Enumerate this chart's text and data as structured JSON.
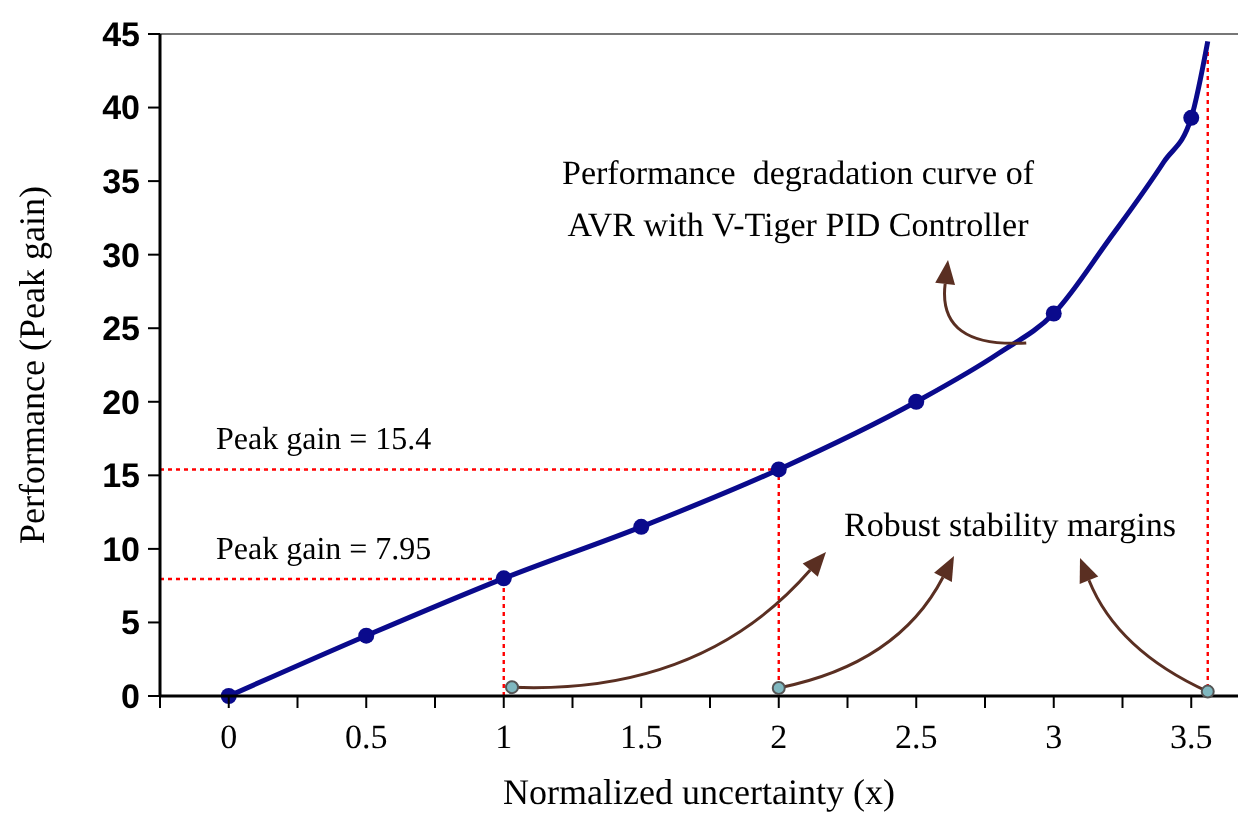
{
  "chart_data": {
    "type": "line",
    "xlabel": "Normalized uncertainty (x)",
    "ylabel": "Performance (Peak gain)",
    "xlim": [
      -0.25,
      3.67
    ],
    "ylim": [
      0,
      45
    ],
    "xticks": [
      {
        "value": -0.25,
        "label": null
      },
      0,
      {
        "value": 0.25,
        "label": null
      },
      0.5,
      {
        "value": 0.75,
        "label": null
      },
      1,
      {
        "value": 1.25,
        "label": null
      },
      1.5,
      {
        "value": 1.75,
        "label": null
      },
      2,
      {
        "value": 2.25,
        "label": null
      },
      2.5,
      {
        "value": 2.75,
        "label": null
      },
      3,
      {
        "value": 3.25,
        "label": null
      },
      3.5
    ],
    "yticks": [
      0,
      5,
      10,
      15,
      20,
      25,
      30,
      35,
      40,
      45
    ],
    "grid": false,
    "series": [
      {
        "color": "#0a0a8c",
        "marker": "none",
        "x": [
          0,
          0.5,
          1,
          1.5,
          2,
          2.5,
          2.8,
          3,
          3.2,
          3.4,
          3.5,
          3.56
        ],
        "values": [
          0,
          4.1,
          8,
          11.5,
          15.4,
          20,
          23.3,
          26,
          31,
          36.3,
          39.3,
          44.5
        ]
      },
      {
        "type": "scatter",
        "color": "#0a0a8c",
        "marker": "circle",
        "x": [
          0,
          0.5,
          1,
          1.5,
          2,
          2.5,
          3,
          3.5
        ],
        "values": [
          0,
          4.1,
          8,
          11.5,
          15.4,
          20,
          26,
          39.3
        ]
      }
    ],
    "ref_lines": [
      {
        "axis": "y",
        "value": 15.4,
        "label": "Peak gain = 15.4",
        "color": "#ff0000",
        "line_style": "dotted"
      },
      {
        "axis": "y",
        "value": 7.95,
        "label": "Peak gain = 7.95",
        "color": "#ff0000",
        "line_style": "dotted"
      },
      {
        "axis": "x",
        "value": 1,
        "color": "#ff0000",
        "line_style": "dotted"
      },
      {
        "axis": "x",
        "value": 2,
        "color": "#ff0000",
        "line_style": "dotted"
      },
      {
        "axis": "x",
        "value": 3.56,
        "color": "#ff0000",
        "line_style": "dotted"
      }
    ],
    "annotations": [
      {
        "text": "Performance  degradation curve of\nAVR with V-Tiger PID Controller",
        "x": 2.9,
        "y": 24
      },
      {
        "text": "Robust stability margins",
        "x": 2,
        "y": 0
      }
    ]
  }
}
